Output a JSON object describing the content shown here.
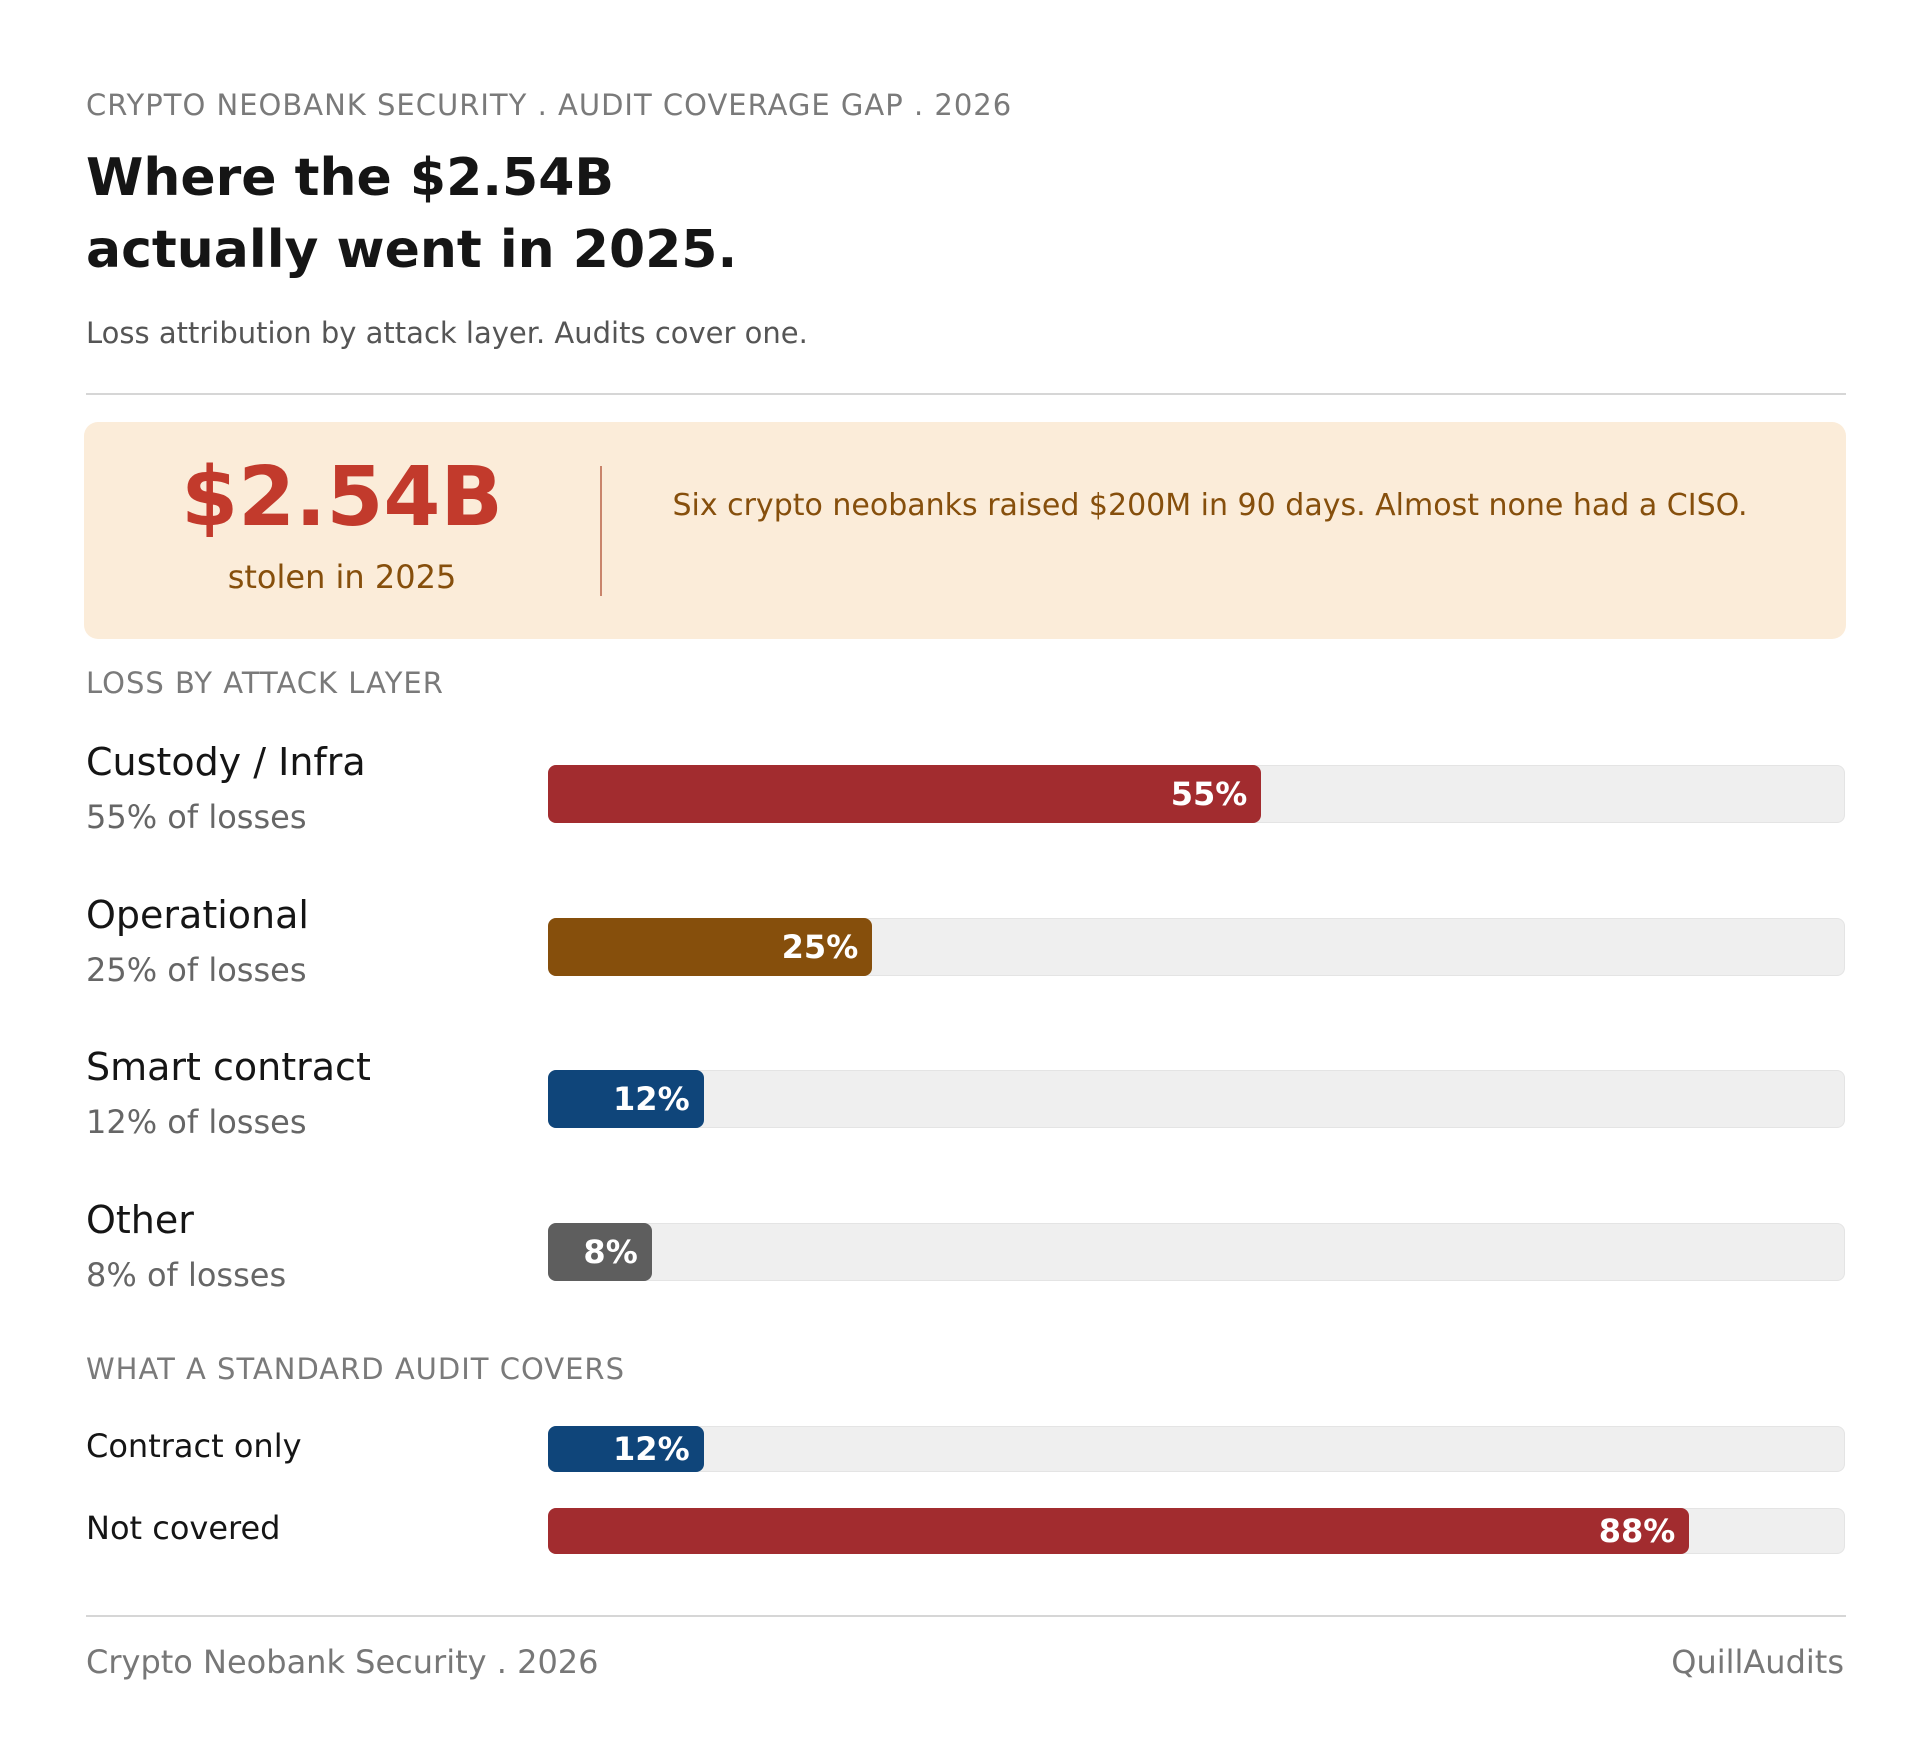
{
  "header": {
    "kicker": "CRYPTO NEOBANK SECURITY . AUDIT COVERAGE GAP . 2026",
    "title_lines": [
      "Where the $2.54B",
      "actually went in 2025."
    ],
    "subtitle": "Loss attribution by attack layer. Audits cover one."
  },
  "callout": {
    "figure": "$2.54B",
    "figure_caption": "stolen in 2025",
    "text": "Six crypto neobanks raised $200M in 90 days. Almost none had a CISO."
  },
  "chart_data": [
    {
      "type": "bar",
      "orientation": "horizontal",
      "title": "LOSS BY ATTACK LAYER",
      "categories": [
        "Custody / Infra",
        "Operational",
        "Smart contract",
        "Other"
      ],
      "sublabels": [
        "55% of losses",
        "25% of losses",
        "12% of losses",
        "8% of losses"
      ],
      "values": [
        55,
        25,
        12,
        8
      ],
      "value_labels": [
        "55%",
        "25%",
        "12%",
        "8%"
      ],
      "colors": [
        "#a22c2f",
        "#864f0c",
        "#0f457a",
        "#5e5e5e"
      ],
      "xlim": [
        0,
        100
      ]
    },
    {
      "type": "bar",
      "orientation": "horizontal",
      "title": "WHAT A STANDARD AUDIT COVERS",
      "categories": [
        "Contract only",
        "Not covered"
      ],
      "values": [
        12,
        88
      ],
      "value_labels": [
        "12%",
        "88%"
      ],
      "colors": [
        "#0f457a",
        "#a22c2f"
      ],
      "xlim": [
        0,
        100
      ]
    }
  ],
  "footer": {
    "left": "Crypto Neobank Security . 2026",
    "right": "QuillAudits"
  }
}
